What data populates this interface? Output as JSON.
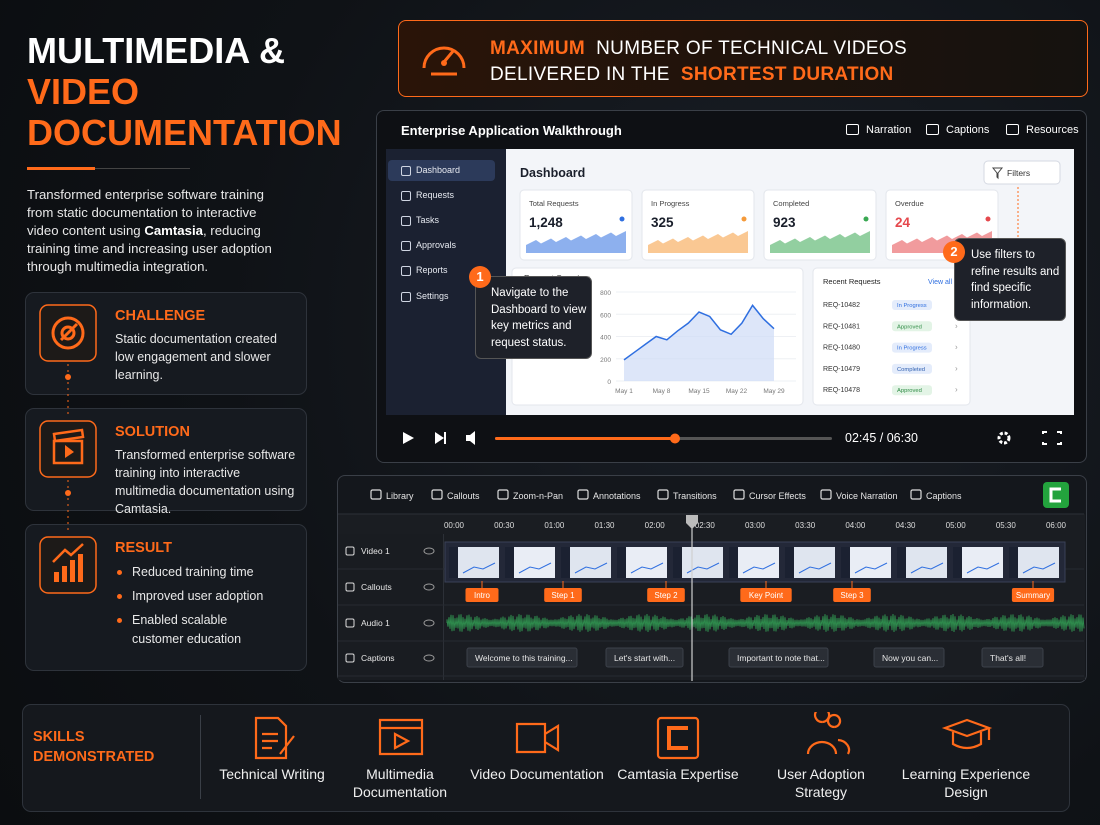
{
  "header": {
    "title": [
      "MULTIMEDIA &",
      "VIDEO",
      "DOCUMENTATION"
    ],
    "intro": {
      "before": "Transformed enterprise software training from static documentation to interactive video content using ",
      "emphasis": "Camtasia",
      "after": ", reducing training time and increasing user adoption through multimedia integration."
    }
  },
  "banner": {
    "highlight1": "MAXIMUM",
    "text1": "NUMBER OF TECHNICAL VIDEOS",
    "text2": "DELIVERED IN THE",
    "highlight2": "SHORTEST DURATION"
  },
  "cards": [
    {
      "title": "CHALLENGE",
      "text": "Static documentation created low engagement and slower learning."
    },
    {
      "title": "SOLUTION",
      "text": "Transformed enterprise software training into interactive multimedia documentation using Camtasia."
    },
    {
      "title": "RESULT",
      "items": [
        "Reduced training time",
        "Improved user adoption",
        "Enabled scalable customer education"
      ]
    }
  ],
  "player": {
    "title": "Enterprise Application Walkthrough",
    "controls": [
      "Narration",
      "Captions",
      "Resources"
    ],
    "nav": [
      "Dashboard",
      "Requests",
      "Tasks",
      "Approvals",
      "Reports",
      "Settings"
    ],
    "dashboard": {
      "title": "Dashboard",
      "filter": "Filters",
      "metrics": [
        {
          "label": "Total Requests",
          "value": "1,248"
        },
        {
          "label": "In Progress",
          "value": "325"
        },
        {
          "label": "Completed",
          "value": "923"
        },
        {
          "label": "Overdue",
          "value": "24"
        }
      ],
      "chart": {
        "type": "line",
        "title": "Request Overview",
        "x": [
          1,
          3,
          5,
          7,
          9,
          11,
          13,
          15,
          17,
          19,
          21,
          23,
          25,
          27,
          29
        ],
        "values": [
          190,
          260,
          330,
          400,
          370,
          450,
          520,
          620,
          580,
          460,
          420,
          520,
          680,
          560,
          470
        ],
        "xlim": [
          0,
          30
        ],
        "xticks": [
          {
            "value": 1,
            "label": "May 1"
          },
          {
            "value": 8,
            "label": "May 8"
          },
          {
            "value": 15,
            "label": "May 15"
          },
          {
            "value": 22,
            "label": "May 22"
          },
          {
            "value": 29,
            "label": "May 29"
          }
        ],
        "ylim": [
          0,
          800
        ],
        "yticks": [
          0,
          200,
          400,
          600,
          800
        ]
      },
      "recent": {
        "title": "Recent Requests",
        "link": "View all",
        "rows": [
          [
            "REQ-10482",
            "In Progress"
          ],
          [
            "REQ-10481",
            "Approved"
          ],
          [
            "REQ-10480",
            "In Progress"
          ],
          [
            "REQ-10479",
            "Completed"
          ],
          [
            "REQ-10478",
            "Approved"
          ]
        ]
      }
    },
    "callouts": [
      {
        "number": "1",
        "text": "Navigate to the Dashboard to view key metrics and request status."
      },
      {
        "number": "2",
        "text": "Use filters to refine results and find specific information."
      }
    ],
    "time": "02:45 / 06:30"
  },
  "editor": {
    "tools": [
      "Library",
      "Callouts",
      "Zoom-n-Pan",
      "Annotations",
      "Transitions",
      "Cursor Effects",
      "Voice Narration",
      "Captions"
    ],
    "ruler": [
      "00:00",
      "00:30",
      "01:00",
      "01:30",
      "02:00",
      "02:30",
      "03:00",
      "03:30",
      "04:00",
      "04:30",
      "05:00",
      "05:30",
      "06:00"
    ],
    "tracks": [
      "Video 1",
      "Callouts",
      "Audio 1",
      "Captions"
    ],
    "markers": [
      "Intro",
      "Step 1",
      "Step 2",
      "Key Point",
      "Step 3",
      "Summary"
    ],
    "captions": [
      "Welcome to this training...",
      "Let's start with...",
      "Important to note that...",
      "Now you can...",
      "That's all!"
    ]
  },
  "skills": {
    "title": "SKILLS DEMONSTRATED",
    "items": [
      "Technical Writing",
      "Multimedia Documentation",
      "Video Documentation",
      "Camtasia Expertise",
      "User Adoption Strategy",
      "Learning Experience Design"
    ]
  }
}
